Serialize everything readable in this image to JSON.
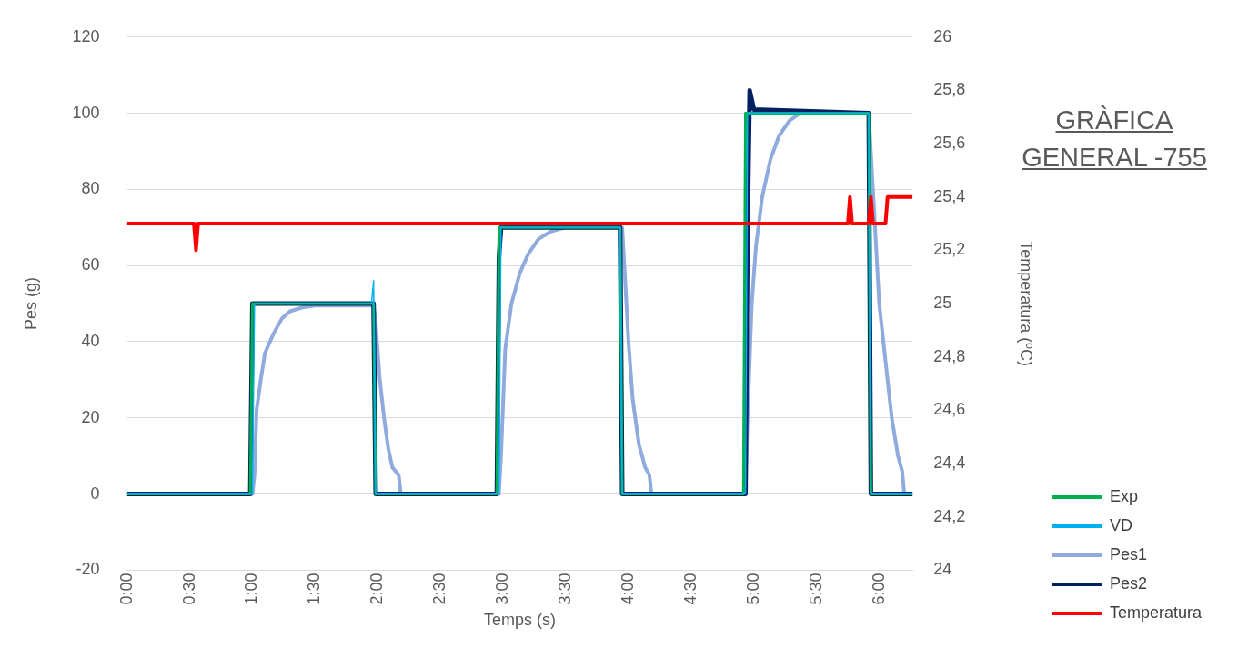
{
  "chart_data": {
    "type": "line",
    "title": "GRÀFICA GENERAL -755",
    "xlabel": "Temps (s)",
    "ylabel": "Pes (g)",
    "y2label": "Temperatura (ºC)",
    "xlim": [
      0,
      376
    ],
    "xticks": [
      {
        "value": 0,
        "label": "0:00"
      },
      {
        "value": 30,
        "label": "0:30"
      },
      {
        "value": 60,
        "label": "1:00"
      },
      {
        "value": 90,
        "label": "1:30"
      },
      {
        "value": 120,
        "label": "2:00"
      },
      {
        "value": 150,
        "label": "2:30"
      },
      {
        "value": 180,
        "label": "3:00"
      },
      {
        "value": 210,
        "label": "3:30"
      },
      {
        "value": 240,
        "label": "4:00"
      },
      {
        "value": 270,
        "label": "4:30"
      },
      {
        "value": 300,
        "label": "5:00"
      },
      {
        "value": 330,
        "label": "5:30"
      },
      {
        "value": 360,
        "label": "6:00"
      }
    ],
    "ylim": [
      -20,
      120
    ],
    "yticks": [
      -20,
      0,
      20,
      40,
      60,
      80,
      100,
      120
    ],
    "y2lim": [
      24,
      26
    ],
    "y2ticks": [
      24,
      {
        "value": 24.2,
        "label": "24,2"
      },
      {
        "value": 24.4,
        "label": "24,4"
      },
      {
        "value": 24.6,
        "label": "24,6"
      },
      {
        "value": 24.8,
        "label": "24,8"
      },
      25,
      {
        "value": 25.2,
        "label": "25,2"
      },
      {
        "value": 25.4,
        "label": "25,4"
      },
      {
        "value": 25.6,
        "label": "25,6"
      },
      {
        "value": 25.8,
        "label": "25,8"
      },
      26
    ],
    "grid": "y",
    "legend": "right",
    "marker": "none",
    "series": [
      {
        "name": "Exp",
        "color": "#00b050",
        "x": [
          0,
          59,
          60,
          118,
          119,
          177,
          178,
          236,
          237,
          295,
          296,
          355,
          356,
          376
        ],
        "values": [
          0,
          0,
          50,
          50,
          0,
          0,
          70,
          70,
          0,
          0,
          100,
          100,
          0,
          0
        ]
      },
      {
        "name": "VD",
        "color": "#00b0f0",
        "x": [
          0,
          60,
          61,
          117,
          118,
          119,
          178,
          179,
          236,
          237,
          296,
          297,
          355,
          356,
          376
        ],
        "values": [
          0,
          0,
          50,
          50,
          56,
          0,
          0,
          70,
          70,
          0,
          0,
          100,
          100,
          0,
          0
        ]
      },
      {
        "name": "Pes1",
        "color": "#8faadc",
        "x": [
          0,
          60,
          61,
          62,
          64,
          66,
          70,
          74,
          78,
          84,
          90,
          118,
          119,
          121,
          123,
          125,
          127,
          130,
          131,
          178,
          179,
          181,
          184,
          188,
          192,
          197,
          203,
          210,
          237,
          238,
          240,
          242,
          245,
          248,
          250,
          251,
          296,
          297,
          299,
          301,
          304,
          308,
          312,
          317,
          322,
          355,
          356,
          358,
          360,
          363,
          366,
          369,
          371,
          372,
          376
        ],
        "values": [
          0,
          0,
          5,
          22,
          30,
          37,
          42,
          46,
          48,
          49,
          49.5,
          49.5,
          45,
          30,
          20,
          12,
          7,
          5,
          0,
          0,
          10,
          38,
          50,
          58,
          63,
          67,
          69,
          70,
          70,
          60,
          40,
          25,
          13,
          7,
          5,
          0,
          0,
          20,
          50,
          65,
          78,
          88,
          94,
          98,
          100,
          100,
          90,
          70,
          50,
          35,
          20,
          10,
          6,
          0,
          0
        ]
      },
      {
        "name": "Pes2",
        "color": "#002060",
        "x": [
          0,
          59,
          60,
          118,
          119,
          177,
          178,
          179,
          236,
          237,
          296,
          297,
          298,
          300,
          355,
          356,
          376
        ],
        "values": [
          0,
          0,
          50,
          50,
          0,
          0,
          62,
          70,
          70,
          0,
          0,
          70,
          106,
          101,
          100,
          0,
          0
        ]
      },
      {
        "name": "Temperatura",
        "color": "#ff0000",
        "axis": "y2",
        "x": [
          0,
          32,
          33,
          34,
          345,
          346,
          347,
          355,
          356,
          357,
          363,
          364,
          376
        ],
        "values": [
          25.3,
          25.3,
          25.2,
          25.3,
          25.3,
          25.4,
          25.3,
          25.3,
          25.4,
          25.3,
          25.3,
          25.4,
          25.4
        ]
      }
    ]
  }
}
